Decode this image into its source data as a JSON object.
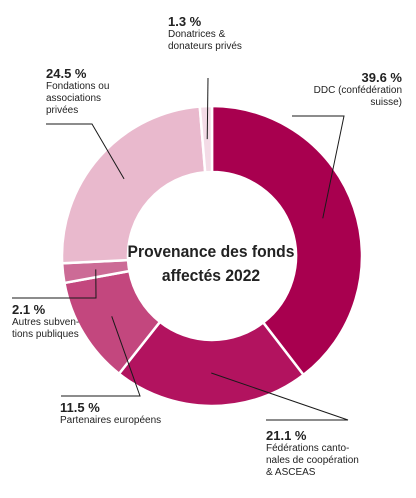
{
  "chart_data": {
    "type": "pie",
    "title": "Provenance des fonds affectés 2022",
    "categories": [
      "DDC (confédération\nsuisse)",
      "Fédérations canto-\nnales de coopération\n& ASCEAS",
      "Partenaires européens",
      "Autres subven-\ntions publiques",
      "Fondations ou\nassociations\nprivées",
      "Donatrices &\ndonateurs privés"
    ],
    "values": [
      39.6,
      21.1,
      11.5,
      2.1,
      24.5,
      1.3
    ],
    "value_labels": [
      "39.6 %",
      "21.1 %",
      "11.5 %",
      "2.1 %",
      "24.5 %",
      "1.3 %"
    ],
    "colors": [
      "#a8004f",
      "#b2135f",
      "#c3477e",
      "#cc6b96",
      "#e9b9cd",
      "#f3dbe6"
    ],
    "legend": "none"
  }
}
